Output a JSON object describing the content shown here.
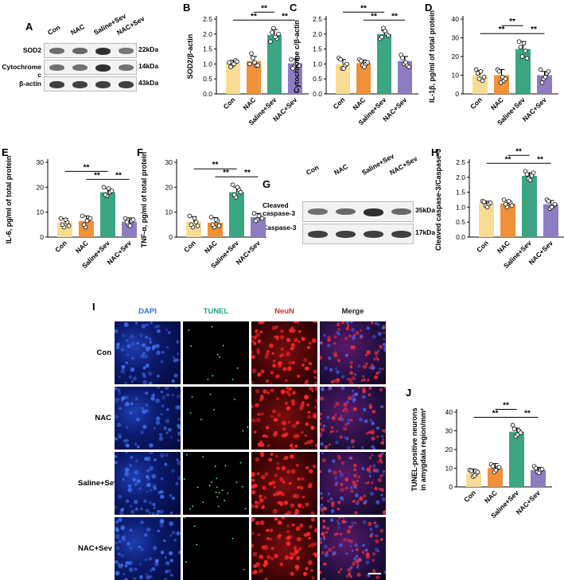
{
  "groups": [
    "Con",
    "NAC",
    "Saline+Sev",
    "NAC+Sev"
  ],
  "colors": [
    "#F8DC94",
    "#F0913A",
    "#3BA67F",
    "#8E7CC3"
  ],
  "sig": "**",
  "panels": {
    "A": {
      "letter": "A",
      "lanes": [
        "Con",
        "NAC",
        "Saline+Sev",
        "NAC+Sev"
      ],
      "rows": [
        {
          "label": "SOD2",
          "kda": "22kDa",
          "intensity": [
            0.55,
            0.6,
            0.95,
            0.5
          ]
        },
        {
          "label": "Cytochrome c",
          "kda": "14kDa",
          "intensity": [
            0.55,
            0.55,
            0.95,
            0.55
          ]
        },
        {
          "label": "β-actin",
          "kda": "43kDa",
          "intensity": [
            0.85,
            0.85,
            0.85,
            0.85
          ]
        }
      ]
    },
    "G": {
      "letter": "G",
      "lanes": [
        "Con",
        "NAC",
        "Saline+Sev",
        "NAC+Sev"
      ],
      "rows": [
        {
          "label": "Cleaved caspase-3",
          "kda": "35kDa",
          "intensity": [
            0.55,
            0.6,
            0.95,
            0.6
          ]
        },
        {
          "label": "Caspase-3",
          "kda": "17kDa",
          "intensity": [
            0.85,
            0.85,
            0.85,
            0.85
          ]
        }
      ]
    },
    "I": {
      "letter": "I",
      "columns": [
        "DAPI",
        "TUNEL",
        "NeuN",
        "Merge"
      ],
      "column_colors": [
        "#2A73D9",
        "#1FA08C",
        "#D32F2F",
        "#222222"
      ],
      "rows": [
        "Con",
        "NAC",
        "Saline+Sev",
        "NAC+Sev"
      ]
    }
  },
  "chart_data": [
    {
      "id": "B",
      "type": "bar",
      "ylabel": "SOD2/β-actin",
      "ylim": [
        0,
        2.5
      ],
      "yticks": [
        "0.0",
        "0.5",
        "1.0",
        "1.5",
        "2.0",
        "2.5"
      ],
      "categories": [
        "Con",
        "NAC",
        "Saline+Sev",
        "NAC+Sev"
      ],
      "values": [
        1.02,
        1.1,
        1.97,
        1.02
      ],
      "errors": [
        0.1,
        0.15,
        0.18,
        0.15
      ],
      "points": [
        [
          1.05,
          0.95,
          1.12,
          0.9,
          1.0,
          1.08
        ],
        [
          1.0,
          1.2,
          0.95,
          1.35,
          1.05,
          0.95
        ],
        [
          1.75,
          2.2,
          1.85,
          2.05,
          1.9,
          2.0
        ],
        [
          1.15,
          0.9,
          1.2,
          0.85,
          1.0,
          0.95
        ]
      ],
      "sig_pairs": [
        [
          2,
          1
        ],
        [
          2,
          0
        ],
        [
          2,
          3
        ]
      ]
    },
    {
      "id": "C",
      "type": "bar",
      "ylabel": "Cytochrome c/β-actin",
      "ylim": [
        0,
        2.5
      ],
      "yticks": [
        "0.0",
        "0.5",
        "1.0",
        "1.5",
        "2.0",
        "2.5"
      ],
      "categories": [
        "Con",
        "NAC",
        "Saline+Sev",
        "NAC+Sev"
      ],
      "values": [
        1.0,
        1.03,
        2.0,
        1.1
      ],
      "errors": [
        0.15,
        0.1,
        0.12,
        0.15
      ],
      "points": [
        [
          1.2,
          0.85,
          0.95,
          1.15,
          0.85,
          1.0
        ],
        [
          1.15,
          0.95,
          1.0,
          1.1,
          0.9,
          1.05
        ],
        [
          1.85,
          2.2,
          2.0,
          1.9,
          2.1,
          1.95
        ],
        [
          1.3,
          1.0,
          0.95,
          1.2,
          1.05,
          0.9
        ]
      ],
      "sig_pairs": [
        [
          2,
          0
        ],
        [
          2,
          1
        ],
        [
          2,
          3
        ]
      ]
    },
    {
      "id": "D",
      "type": "bar",
      "ylabel": "IL-1β, pg/ml of total protein",
      "ylim": [
        0,
        40
      ],
      "yticks": [
        "0",
        "10",
        "20",
        "30",
        "40"
      ],
      "categories": [
        "Con",
        "NAC",
        "Saline+Sev",
        "NAC+Sev"
      ],
      "values": [
        10,
        10,
        24,
        10
      ],
      "errors": [
        2.5,
        3,
        4,
        2
      ],
      "points": [
        [
          13,
          8,
          7,
          11,
          12,
          9
        ],
        [
          13,
          6,
          7,
          12,
          9,
          8
        ],
        [
          28,
          20,
          23,
          25,
          27,
          19
        ],
        [
          13,
          8,
          11,
          6,
          9,
          12
        ]
      ],
      "sig_pairs": [
        [
          2,
          1
        ],
        [
          2,
          0
        ],
        [
          2,
          3
        ]
      ]
    },
    {
      "id": "E",
      "type": "bar",
      "ylabel": "IL-6, pg/ml of total protein",
      "ylim": [
        0,
        30
      ],
      "yticks": [
        "0",
        "10",
        "20",
        "30"
      ],
      "categories": [
        "Con",
        "NAC",
        "Saline+Sev",
        "NAC+Sev"
      ],
      "values": [
        6,
        6.5,
        18,
        6.2
      ],
      "errors": [
        1.5,
        2,
        1.5,
        1.5
      ],
      "points": [
        [
          7.5,
          4,
          6,
          5,
          7,
          4.5
        ],
        [
          8.5,
          4,
          7,
          5,
          6.5,
          7.5
        ],
        [
          20,
          16.5,
          18,
          17,
          19.5,
          18.5
        ],
        [
          7.5,
          5,
          6.5,
          6,
          4.5,
          7
        ]
      ],
      "sig_pairs": [
        [
          2,
          0
        ],
        [
          2,
          1
        ],
        [
          2,
          3
        ]
      ]
    },
    {
      "id": "F",
      "type": "bar",
      "ylabel": "TNF-α, pg/ml of total protein",
      "ylim": [
        0,
        30
      ],
      "yticks": [
        "0",
        "10",
        "20",
        "30"
      ],
      "categories": [
        "Con",
        "NAC",
        "Saline+Sev",
        "NAC+Sev"
      ],
      "values": [
        6.2,
        5.8,
        18,
        8
      ],
      "errors": [
        2,
        2,
        2,
        1.5
      ],
      "points": [
        [
          8.5,
          4,
          6,
          5,
          7.5,
          4.5
        ],
        [
          8,
          4,
          6.5,
          5,
          7,
          4.5
        ],
        [
          21,
          16,
          19,
          17,
          20,
          18
        ],
        [
          9.5,
          7,
          8,
          6.5,
          8.5,
          7.5
        ]
      ],
      "sig_pairs": [
        [
          2,
          0
        ],
        [
          2,
          1
        ],
        [
          2,
          3
        ]
      ]
    },
    {
      "id": "H",
      "type": "bar",
      "ylabel": "Cleaved caspase-3/Caspase-3",
      "ylim": [
        0,
        2.5
      ],
      "yticks": [
        "0.0",
        "0.5",
        "1.0",
        "1.5",
        "2.0",
        "2.5"
      ],
      "categories": [
        "Con",
        "NAC",
        "Saline+Sev",
        "NAC+Sev"
      ],
      "values": [
        1.12,
        1.12,
        2.05,
        1.1
      ],
      "errors": [
        0.08,
        0.1,
        0.1,
        0.12
      ],
      "points": [
        [
          1.2,
          1.05,
          1.1,
          1.18,
          1.0,
          1.15
        ],
        [
          1.25,
          1.0,
          1.15,
          1.1,
          1.2,
          1.05
        ],
        [
          2.2,
          1.95,
          2.05,
          2.1,
          1.9,
          2.15
        ],
        [
          1.25,
          0.95,
          1.05,
          1.2,
          1.0,
          1.1
        ]
      ],
      "sig_pairs": [
        [
          2,
          1
        ],
        [
          2,
          0
        ],
        [
          2,
          3
        ]
      ]
    },
    {
      "id": "J",
      "type": "bar",
      "ylabel": "TUNEL-positive neurons in amygdala region/mm²",
      "ylim": [
        0,
        40
      ],
      "yticks": [
        "0",
        "10",
        "20",
        "30",
        "40"
      ],
      "categories": [
        "Con",
        "NAC",
        "Saline+Sev",
        "NAC+Sev"
      ],
      "values": [
        7.5,
        10,
        29.5,
        9
      ],
      "errors": [
        2,
        2.5,
        2,
        1.5
      ],
      "points": [
        [
          9,
          5.5,
          7,
          8.5,
          6,
          8
        ],
        [
          12,
          8,
          10,
          11,
          9,
          10.5
        ],
        [
          33,
          27,
          30,
          31,
          28,
          29
        ],
        [
          11,
          8,
          9,
          10,
          7.5,
          9.5
        ]
      ],
      "sig_pairs": [
        [
          2,
          1
        ],
        [
          2,
          0
        ],
        [
          2,
          3
        ]
      ]
    }
  ]
}
